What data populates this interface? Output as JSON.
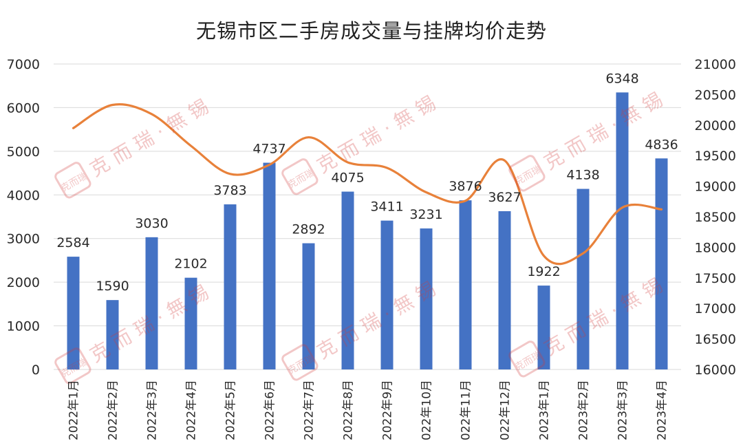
{
  "chart_data": {
    "type": "bar",
    "title": "无锡市区二手房成交量与挂牌均价走势",
    "categories": [
      "2022年1月",
      "2022年2月",
      "2022年3月",
      "2022年4月",
      "2022年5月",
      "2022年6月",
      "2022年7月",
      "2022年8月",
      "2022年9月",
      "2022年10月",
      "2022年11月",
      "2022年12月",
      "2023年1月",
      "2023年2月",
      "2023年3月",
      "2023年4月"
    ],
    "series": [
      {
        "type": "bar",
        "axis": "left",
        "values": [
          2584,
          1590,
          3030,
          2102,
          3783,
          4737,
          2892,
          4075,
          3411,
          3231,
          3876,
          3627,
          1922,
          4138,
          6348,
          4836
        ],
        "color": "#4472C4",
        "data_labels": true
      },
      {
        "type": "line",
        "axis": "right",
        "smooth": true,
        "values": [
          19950,
          20330,
          20180,
          19660,
          19200,
          19350,
          19800,
          19390,
          19300,
          18900,
          18760,
          19420,
          17860,
          17900,
          18650,
          18620
        ],
        "color": "#E8813A"
      }
    ],
    "y_left": {
      "lim": [
        0,
        7000
      ],
      "ticks": [
        0,
        1000,
        2000,
        3000,
        4000,
        5000,
        6000,
        7000
      ]
    },
    "y_right": {
      "lim": [
        16000,
        21000
      ],
      "ticks": [
        16000,
        16500,
        17000,
        17500,
        18000,
        18500,
        19000,
        19500,
        20000,
        20500,
        21000
      ]
    },
    "grid": true,
    "legend": "none"
  },
  "watermark": {
    "text": "克 而 瑞 · 無 锡",
    "seal": "克而瑞"
  }
}
